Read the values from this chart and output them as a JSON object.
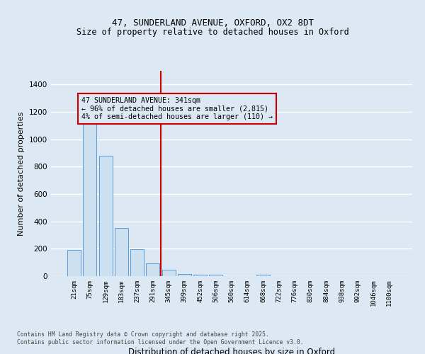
{
  "title_line1": "47, SUNDERLAND AVENUE, OXFORD, OX2 8DT",
  "title_line2": "Size of property relative to detached houses in Oxford",
  "xlabel": "Distribution of detached houses by size in Oxford",
  "ylabel": "Number of detached properties",
  "bar_color": "#cce0f0",
  "bar_edge_color": "#5b9bd5",
  "background_color": "#dce9f5",
  "grid_color": "#ffffff",
  "annotation_box_color": "#cc0000",
  "vline_color": "#cc0000",
  "categories": [
    "21sqm",
    "75sqm",
    "129sqm",
    "183sqm",
    "237sqm",
    "291sqm",
    "345sqm",
    "399sqm",
    "452sqm",
    "506sqm",
    "560sqm",
    "614sqm",
    "668sqm",
    "722sqm",
    "776sqm",
    "830sqm",
    "884sqm",
    "938sqm",
    "992sqm",
    "1046sqm",
    "1100sqm"
  ],
  "values": [
    190,
    1120,
    880,
    350,
    195,
    95,
    45,
    15,
    12,
    10,
    0,
    0,
    10,
    0,
    0,
    0,
    0,
    0,
    0,
    0,
    0
  ],
  "vline_position": 5.5,
  "annotation_text": "47 SUNDERLAND AVENUE: 341sqm\n← 96% of detached houses are smaller (2,815)\n4% of semi-detached houses are larger (110) →",
  "ylim": [
    0,
    1500
  ],
  "yticks": [
    0,
    200,
    400,
    600,
    800,
    1000,
    1200,
    1400
  ],
  "footer_line1": "Contains HM Land Registry data © Crown copyright and database right 2025.",
  "footer_line2": "Contains public sector information licensed under the Open Government Licence v3.0."
}
